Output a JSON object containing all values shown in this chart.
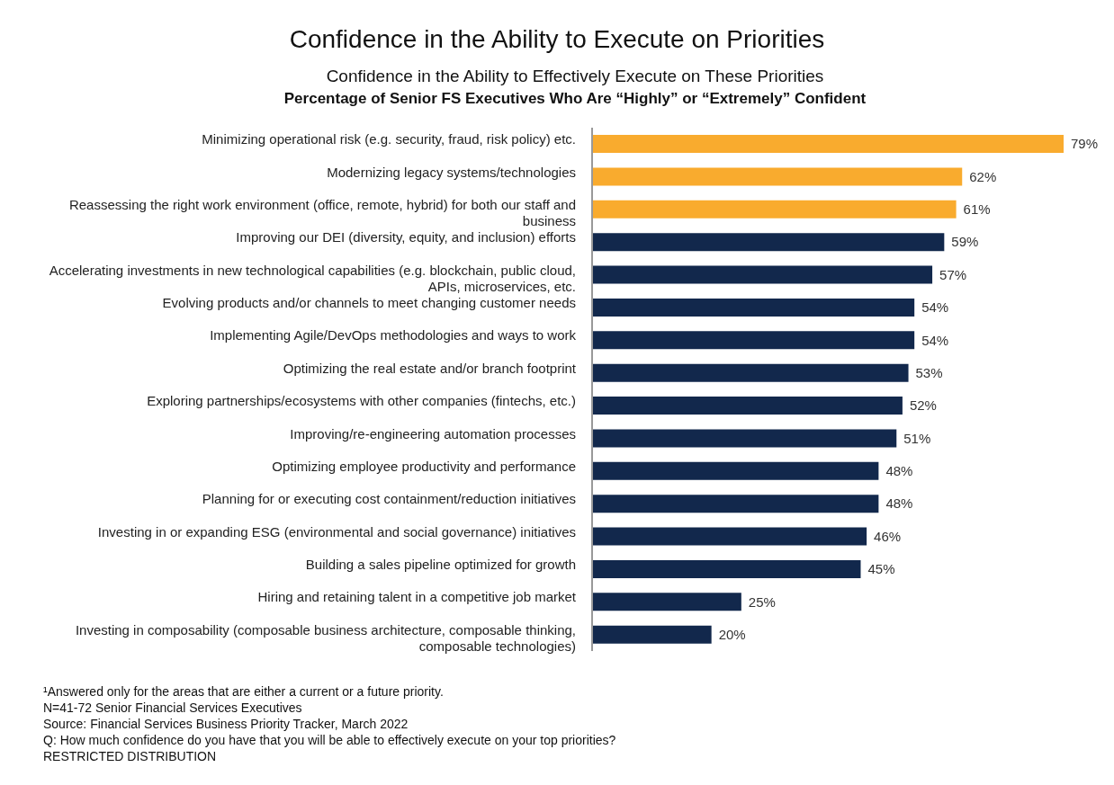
{
  "chart_data": {
    "type": "bar",
    "orientation": "horizontal",
    "title": "Confidence in the Ability to Execute on Priorities",
    "subtitle": "Confidence in the Ability to Effectively Execute on These Priorities",
    "categories": [
      "Minimizing operational risk (e.g. security, fraud, risk policy) etc.",
      "Modernizing legacy systems/technologies",
      "Reassessing the right work environment (office, remote, hybrid) for both our staff and business",
      "Improving our DEI (diversity, equity, and inclusion) efforts",
      "Accelerating investments in new technological capabilities (e.g. blockchain, public cloud, APIs, microservices, etc.",
      "Evolving products and/or channels to meet changing customer needs",
      "Implementing Agile/DevOps methodologies and ways to work",
      "Optimizing the real estate and/or branch footprint",
      "Exploring partnerships/ecosystems with other companies (fintechs, etc.)",
      "Improving/re-engineering automation processes",
      "Optimizing employee productivity and performance",
      "Planning for or executing cost containment/reduction initiatives",
      "Investing in or expanding ESG (environmental and social governance) initiatives",
      "Building a sales pipeline optimized for growth",
      "Hiring and retaining talent in a competitive job market",
      "Investing in composability (composable business architecture, composable thinking, composable technologies)"
    ],
    "values": [
      79,
      62,
      61,
      59,
      57,
      54,
      54,
      53,
      52,
      51,
      48,
      48,
      46,
      45,
      25,
      20
    ],
    "value_labels": [
      "79%",
      "62%",
      "61%",
      "59%",
      "57%",
      "54%",
      "54%",
      "53%",
      "52%",
      "51%",
      "48%",
      "48%",
      "46%",
      "45%",
      "25%",
      "20%"
    ],
    "colors": [
      "#f9ab2e",
      "#f9ab2e",
      "#f9ab2e",
      "#12284c",
      "#12284c",
      "#12284c",
      "#12284c",
      "#12284c",
      "#12284c",
      "#12284c",
      "#12284c",
      "#12284c",
      "#12284c",
      "#12284c",
      "#12284c",
      "#12284c"
    ],
    "annotations": [
      "Percentage of Senior FS Executives Who Are “Highly” or “Extremely” Confident",
      "¹Answered only for the areas that are either a current or a future priority.",
      "N=41-72 Senior Financial Services Executives",
      "Source: Financial Services Business Priority Tracker, March 2022",
      "Q: How much confidence do you have that you will be able to effectively execute on your top priorities?",
      "RESTRICTED DISTRIBUTION"
    ]
  }
}
